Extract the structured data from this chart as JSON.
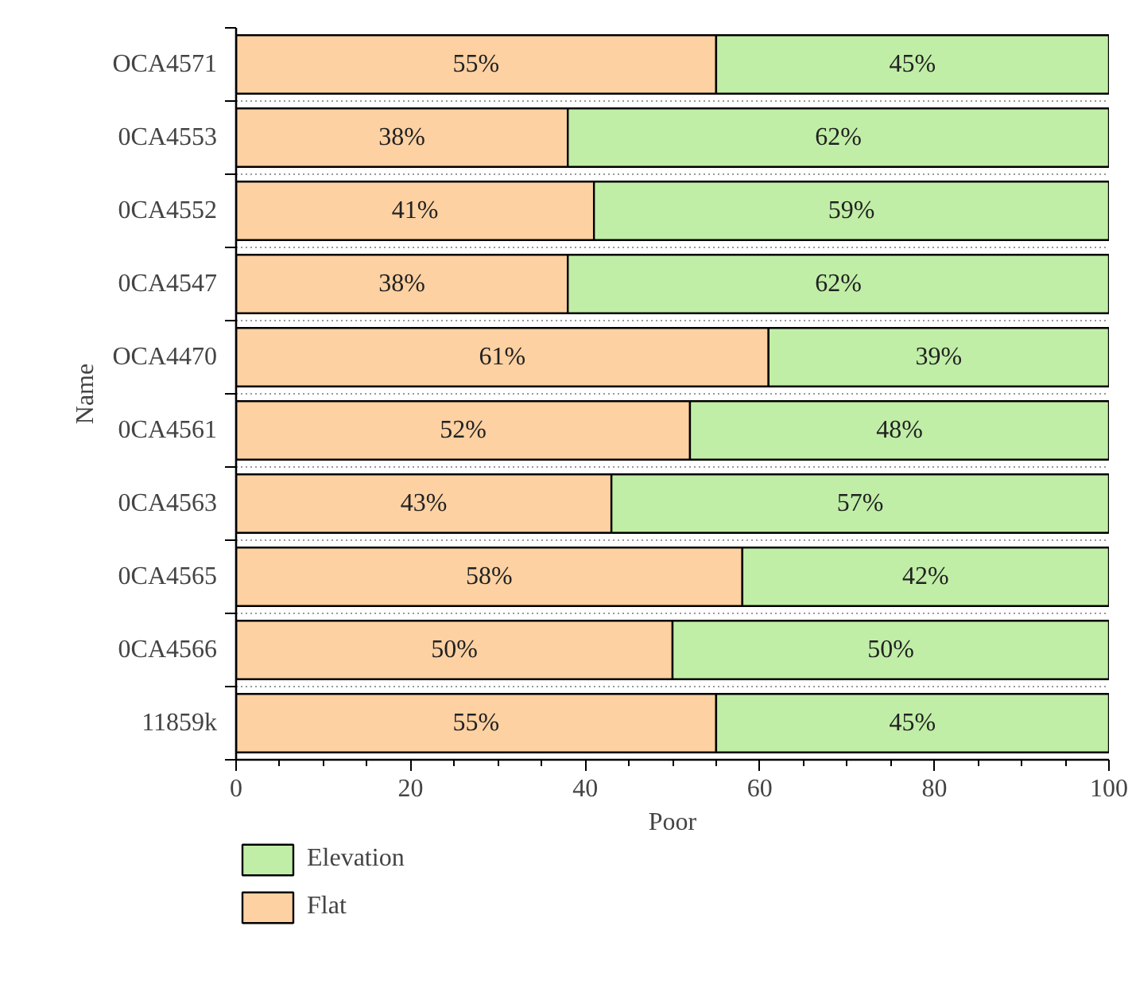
{
  "chart_data": {
    "type": "bar",
    "orientation": "horizontal",
    "stacked": true,
    "xlabel": "Poor",
    "ylabel": "Name",
    "categories": [
      "OCA4571",
      "0CA4553",
      "0CA4552",
      "0CA4547",
      "OCA4470",
      "0CA4561",
      "0CA4563",
      "0CA4565",
      "0CA4566",
      "11859k"
    ],
    "series": [
      {
        "name": "Flat",
        "color": "#fdd1a2",
        "values": [
          55,
          38,
          41,
          38,
          61,
          52,
          43,
          58,
          50,
          55
        ],
        "value_labels": [
          "55%",
          "38%",
          "41%",
          "38%",
          "61%",
          "52%",
          "43%",
          "58%",
          "50%",
          "55%"
        ]
      },
      {
        "name": "Elevation",
        "color": "#c1eea7",
        "values": [
          45,
          62,
          59,
          62,
          39,
          48,
          57,
          42,
          50,
          45
        ],
        "value_labels": [
          "45%",
          "62%",
          "59%",
          "62%",
          "39%",
          "48%",
          "57%",
          "42%",
          "50%",
          "45%"
        ]
      }
    ],
    "xlim": [
      0,
      100
    ],
    "xticks": [
      0,
      20,
      40,
      60,
      80,
      100
    ],
    "legend": "bottom left"
  }
}
